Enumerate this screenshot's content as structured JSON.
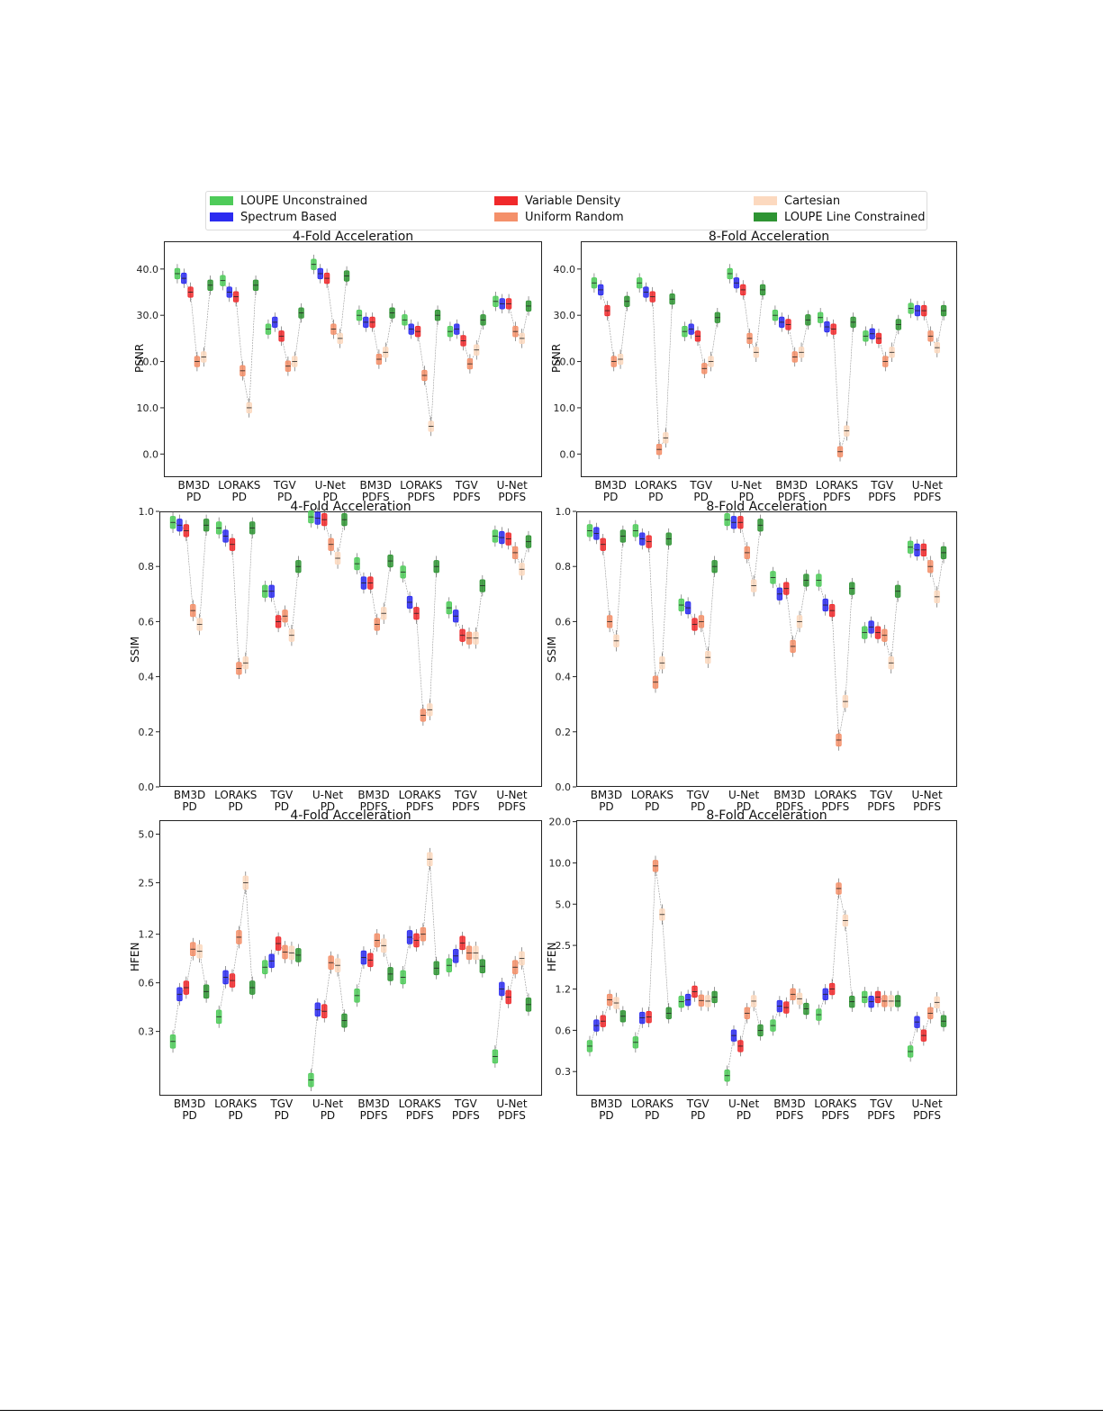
{
  "legend": {
    "entries": [
      {
        "label": "LOUPE Unconstrained",
        "color": "#4ecb59"
      },
      {
        "label": "Variable Density",
        "color": "#f0292b"
      },
      {
        "label": "Cartesian",
        "color": "#fcd9bf"
      },
      {
        "label": "Spectrum Based",
        "color": "#2b2bf0"
      },
      {
        "label": "Uniform Random",
        "color": "#f4906a"
      },
      {
        "label": "LOUPE Line Constrained",
        "color": "#2e9433"
      }
    ]
  },
  "chart_data": [
    {
      "type": "box",
      "title": "4-Fold Acceleration",
      "ylabel": "PSNR",
      "ylim": [
        -5,
        46
      ],
      "yticks": [
        "0.0",
        "10.0",
        "20.0",
        "30.0",
        "40.0"
      ],
      "ytick_values": [
        0,
        10,
        20,
        30,
        40
      ],
      "categories": [
        "BM3D\nPD",
        "LORAKS\nPD",
        "TGV\nPD",
        "U-Net\nPD",
        "BM3D\nPDFS",
        "LORAKS\nPDFS",
        "TGV\nPDFS",
        "U-Net\nPDFS"
      ],
      "series": [
        {
          "name": "LOUPE Unconstrained",
          "medians": [
            39.0,
            37.5,
            27.0,
            41.0,
            30.0,
            29.0,
            26.5,
            33.0
          ]
        },
        {
          "name": "Spectrum Based",
          "medians": [
            38.0,
            35.0,
            28.5,
            39.0,
            28.5,
            27.0,
            27.0,
            32.5
          ]
        },
        {
          "name": "Variable Density",
          "medians": [
            35.0,
            34.0,
            25.5,
            38.0,
            28.5,
            26.5,
            24.5,
            32.5
          ]
        },
        {
          "name": "Uniform Random",
          "medians": [
            20.0,
            18.0,
            19.0,
            27.0,
            20.5,
            17.0,
            19.5,
            26.5
          ]
        },
        {
          "name": "Cartesian",
          "medians": [
            21.0,
            10.0,
            20.0,
            25.0,
            22.0,
            6.0,
            22.5,
            25.0
          ]
        },
        {
          "name": "LOUPE Line Constrained",
          "medians": [
            36.5,
            36.5,
            30.5,
            38.5,
            30.5,
            30.0,
            29.0,
            32.0
          ]
        }
      ]
    },
    {
      "type": "box",
      "title": "8-Fold Acceleration",
      "ylabel": "PSNR",
      "ylim": [
        -5,
        46
      ],
      "yticks": [
        "0.0",
        "10.0",
        "20.0",
        "30.0",
        "40.0"
      ],
      "ytick_values": [
        0,
        10,
        20,
        30,
        40
      ],
      "categories": [
        "BM3D\nPD",
        "LORAKS\nPD",
        "TGV\nPD",
        "U-Net\nPD",
        "BM3D\nPDFS",
        "LORAKS\nPDFS",
        "TGV\nPDFS",
        "U-Net\nPDFS"
      ],
      "series": [
        {
          "name": "LOUPE Unconstrained",
          "medians": [
            37.0,
            37.0,
            26.5,
            39.0,
            30.0,
            29.5,
            25.5,
            31.5
          ]
        },
        {
          "name": "Spectrum Based",
          "medians": [
            35.5,
            35.0,
            27.0,
            37.0,
            28.5,
            27.5,
            26.0,
            31.0
          ]
        },
        {
          "name": "Variable Density",
          "medians": [
            31.0,
            34.0,
            25.5,
            35.5,
            28.0,
            27.0,
            25.0,
            31.0
          ]
        },
        {
          "name": "Uniform Random",
          "medians": [
            20.0,
            1.0,
            18.5,
            25.0,
            21.0,
            0.5,
            20.0,
            25.5
          ]
        },
        {
          "name": "Cartesian",
          "medians": [
            20.5,
            3.5,
            20.0,
            22.0,
            22.0,
            5.0,
            22.0,
            23.0
          ]
        },
        {
          "name": "LOUPE Line Constrained",
          "medians": [
            33.0,
            33.5,
            29.5,
            35.5,
            29.0,
            28.5,
            28.0,
            31.0
          ]
        }
      ]
    },
    {
      "type": "box",
      "title": "4-Fold Acceleration",
      "ylabel": "SSIM",
      "ylim": [
        0.0,
        1.0
      ],
      "yticks": [
        "0.0",
        "0.2",
        "0.4",
        "0.6",
        "0.8",
        "1.0"
      ],
      "ytick_values": [
        0.0,
        0.2,
        0.4,
        0.6,
        0.8,
        1.0
      ],
      "categories": [
        "BM3D\nPD",
        "LORAKS\nPD",
        "TGV\nPD",
        "U-Net\nPD",
        "BM3D\nPDFS",
        "LORAKS\nPDFS",
        "TGV\nPDFS",
        "U-Net\nPDFS"
      ],
      "series": [
        {
          "name": "LOUPE Unconstrained",
          "medians": [
            0.96,
            0.94,
            0.71,
            0.98,
            0.81,
            0.78,
            0.65,
            0.91
          ]
        },
        {
          "name": "Spectrum Based",
          "medians": [
            0.95,
            0.91,
            0.71,
            0.975,
            0.74,
            0.67,
            0.62,
            0.905
          ]
        },
        {
          "name": "Variable Density",
          "medians": [
            0.93,
            0.88,
            0.6,
            0.97,
            0.74,
            0.63,
            0.55,
            0.9
          ]
        },
        {
          "name": "Uniform Random",
          "medians": [
            0.64,
            0.43,
            0.62,
            0.88,
            0.59,
            0.26,
            0.54,
            0.85
          ]
        },
        {
          "name": "Cartesian",
          "medians": [
            0.59,
            0.45,
            0.55,
            0.83,
            0.63,
            0.28,
            0.54,
            0.79
          ]
        },
        {
          "name": "LOUPE Line Constrained",
          "medians": [
            0.95,
            0.94,
            0.8,
            0.97,
            0.82,
            0.8,
            0.73,
            0.89
          ]
        }
      ]
    },
    {
      "type": "box",
      "title": "8-Fold Acceleration",
      "ylabel": "SSIM",
      "ylim": [
        0.0,
        1.0
      ],
      "yticks": [
        "0.0",
        "0.2",
        "0.4",
        "0.6",
        "0.8",
        "1.0"
      ],
      "ytick_values": [
        0.0,
        0.2,
        0.4,
        0.6,
        0.8,
        1.0
      ],
      "categories": [
        "BM3D\nPD",
        "LORAKS\nPD",
        "TGV\nPD",
        "U-Net\nPD",
        "BM3D\nPDFS",
        "LORAKS\nPDFS",
        "TGV\nPDFS",
        "U-Net\nPDFS"
      ],
      "series": [
        {
          "name": "LOUPE Unconstrained",
          "medians": [
            0.93,
            0.93,
            0.66,
            0.97,
            0.76,
            0.75,
            0.56,
            0.87
          ]
        },
        {
          "name": "Spectrum Based",
          "medians": [
            0.92,
            0.9,
            0.65,
            0.96,
            0.7,
            0.66,
            0.58,
            0.86
          ]
        },
        {
          "name": "Variable Density",
          "medians": [
            0.88,
            0.89,
            0.59,
            0.96,
            0.72,
            0.64,
            0.56,
            0.86
          ]
        },
        {
          "name": "Uniform Random",
          "medians": [
            0.6,
            0.38,
            0.6,
            0.85,
            0.51,
            0.17,
            0.55,
            0.8
          ]
        },
        {
          "name": "Cartesian",
          "medians": [
            0.53,
            0.45,
            0.47,
            0.73,
            0.6,
            0.31,
            0.45,
            0.69
          ]
        },
        {
          "name": "LOUPE Line Constrained",
          "medians": [
            0.91,
            0.9,
            0.8,
            0.95,
            0.75,
            0.72,
            0.71,
            0.85
          ]
        }
      ]
    },
    {
      "type": "box",
      "title": "4-Fold Acceleration",
      "ylabel": "HFEN",
      "yscale": "log",
      "ylim": [
        0.12,
        6.1
      ],
      "yticks": [
        "0.3",
        "0.6",
        "1.2",
        "2.5",
        "5.0"
      ],
      "ytick_values": [
        0.3,
        0.6,
        1.2,
        2.5,
        5.0
      ],
      "categories": [
        "BM3D\nPD",
        "LORAKS\nPD",
        "TGV\nPD",
        "U-Net\nPD",
        "BM3D\nPDFS",
        "LORAKS\nPDFS",
        "TGV\nPDFS",
        "U-Net\nPDFS"
      ],
      "series": [
        {
          "name": "LOUPE Unconstrained",
          "medians": [
            0.26,
            0.37,
            0.75,
            0.15,
            0.5,
            0.65,
            0.77,
            0.21
          ]
        },
        {
          "name": "Spectrum Based",
          "medians": [
            0.51,
            0.65,
            0.82,
            0.41,
            0.86,
            1.15,
            0.88,
            0.55
          ]
        },
        {
          "name": "Variable Density",
          "medians": [
            0.56,
            0.62,
            1.05,
            0.4,
            0.83,
            1.1,
            1.06,
            0.49
          ]
        },
        {
          "name": "Uniform Random",
          "medians": [
            0.97,
            1.15,
            0.93,
            0.8,
            1.1,
            1.2,
            0.92,
            0.75
          ]
        },
        {
          "name": "Cartesian",
          "medians": [
            0.94,
            2.5,
            0.92,
            0.77,
            1.02,
            3.5,
            0.92,
            0.85
          ]
        },
        {
          "name": "LOUPE Line Constrained",
          "medians": [
            0.53,
            0.56,
            0.89,
            0.35,
            0.68,
            0.74,
            0.76,
            0.44
          ]
        }
      ]
    },
    {
      "type": "box",
      "title": "8-Fold Acceleration",
      "ylabel": "HFEN",
      "yscale": "log",
      "ylim": [
        0.2,
        20.5
      ],
      "yticks": [
        "0.3",
        "0.6",
        "1.2",
        "2.5",
        "5.0",
        "10.0",
        "20.0"
      ],
      "ytick_values": [
        0.3,
        0.6,
        1.2,
        2.5,
        5.0,
        10.0,
        20.0
      ],
      "categories": [
        "BM3D\nPD",
        "LORAKS\nPD",
        "TGV\nPD",
        "U-Net\nPD",
        "BM3D\nPDFS",
        "LORAKS\nPDFS",
        "TGV\nPDFS",
        "U-Net\nPDFS"
      ],
      "series": [
        {
          "name": "LOUPE Unconstrained",
          "medians": [
            0.46,
            0.49,
            0.97,
            0.28,
            0.65,
            0.78,
            1.05,
            0.42
          ]
        },
        {
          "name": "Spectrum Based",
          "medians": [
            0.65,
            0.74,
            1.0,
            0.55,
            0.9,
            1.1,
            0.97,
            0.69
          ]
        },
        {
          "name": "Variable Density",
          "medians": [
            0.7,
            0.75,
            1.15,
            0.46,
            0.88,
            1.2,
            1.05,
            0.55
          ]
        },
        {
          "name": "Uniform Random",
          "medians": [
            1.0,
            9.5,
            0.99,
            0.8,
            1.1,
            6.5,
            0.98,
            0.8
          ]
        },
        {
          "name": "Cartesian",
          "medians": [
            0.95,
            4.2,
            0.98,
            0.98,
            1.02,
            3.8,
            0.98,
            0.96
          ]
        },
        {
          "name": "LOUPE Line Constrained",
          "medians": [
            0.76,
            0.8,
            1.05,
            0.6,
            0.86,
            0.97,
            0.98,
            0.7
          ]
        }
      ]
    }
  ]
}
